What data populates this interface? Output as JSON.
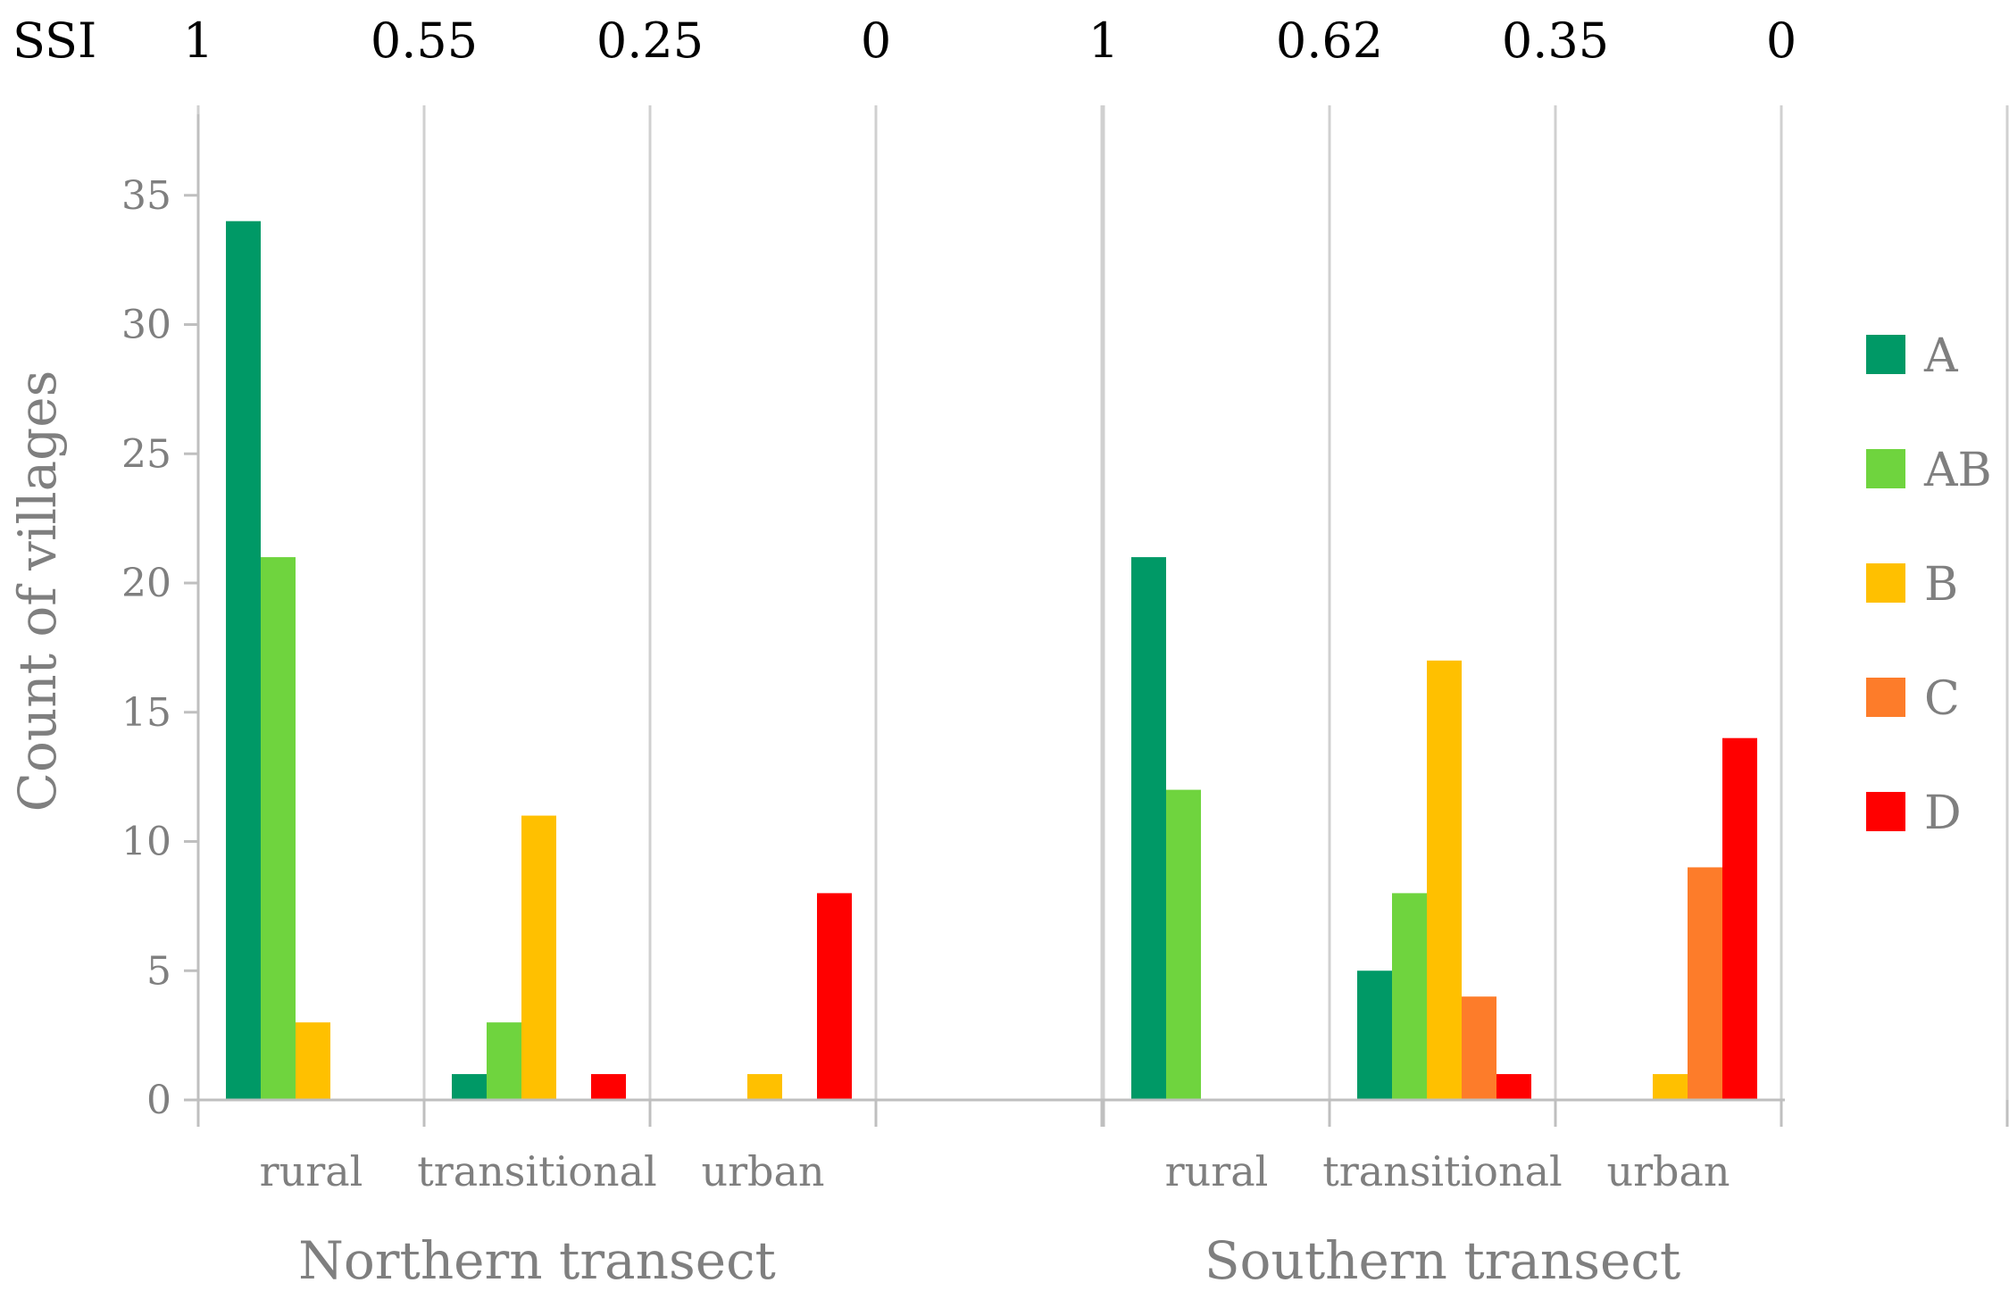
{
  "chart_data": {
    "type": "bar",
    "ylabel": "Count of villages",
    "ylim": [
      0,
      38
    ],
    "yticks": [
      0,
      5,
      10,
      15,
      20,
      25,
      30,
      35
    ],
    "ssi_label": "SSI",
    "groups": [
      {
        "name": "Northern transect",
        "ssi_ticks": [
          "1",
          "0.55",
          "0.25",
          "0"
        ],
        "categories": [
          "rural",
          "transitional",
          "urban"
        ],
        "series": [
          {
            "name": "A",
            "values": [
              34,
              1,
              0
            ]
          },
          {
            "name": "AB",
            "values": [
              21,
              3,
              0
            ]
          },
          {
            "name": "B",
            "values": [
              3,
              11,
              1
            ]
          },
          {
            "name": "C",
            "values": [
              0,
              0,
              0
            ]
          },
          {
            "name": "D",
            "values": [
              0,
              1,
              8
            ]
          }
        ]
      },
      {
        "name": "Southern transect",
        "ssi_ticks": [
          "1",
          "0.62",
          "0.35",
          "0"
        ],
        "categories": [
          "rural",
          "transitional",
          "urban"
        ],
        "series": [
          {
            "name": "A",
            "values": [
              21,
              5,
              0
            ]
          },
          {
            "name": "AB",
            "values": [
              12,
              8,
              0
            ]
          },
          {
            "name": "B",
            "values": [
              0,
              17,
              1
            ]
          },
          {
            "name": "C",
            "values": [
              0,
              4,
              9
            ]
          },
          {
            "name": "D",
            "values": [
              0,
              1,
              14
            ]
          }
        ]
      }
    ],
    "legend": [
      {
        "name": "A",
        "color": "#009966"
      },
      {
        "name": "AB",
        "color": "#6fd43e"
      },
      {
        "name": "B",
        "color": "#ffc000"
      },
      {
        "name": "C",
        "color": "#fd7c2a"
      },
      {
        "name": "D",
        "color": "#ff0000"
      }
    ],
    "colors": {
      "grid": "#d0d0d0",
      "axis": "#bfbfbf",
      "text": "#7f7f7f"
    },
    "legend_position": "right",
    "grid": true
  }
}
